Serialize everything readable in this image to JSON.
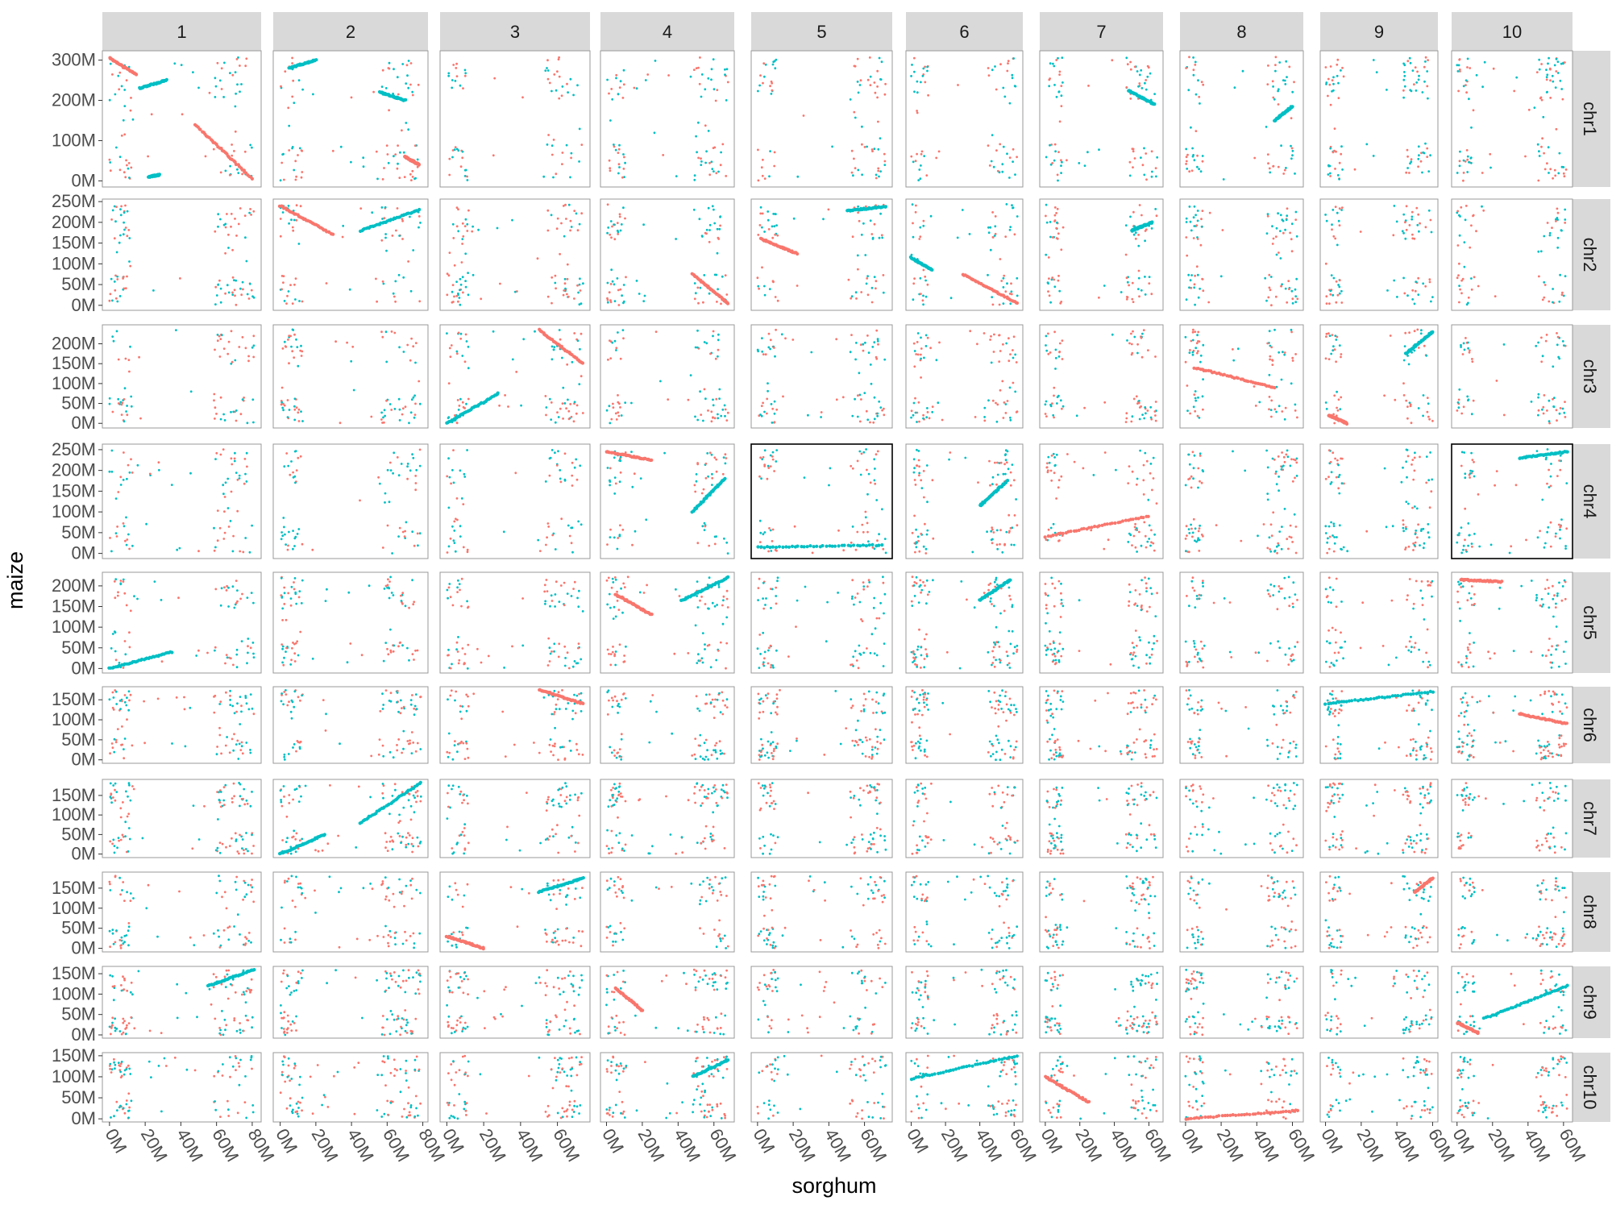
{
  "chart_data": {
    "type": "scatter",
    "layout": "facet-grid",
    "xlabel": "sorghum",
    "ylabel": "maize",
    "column_facets": [
      "1",
      "2",
      "3",
      "4",
      "5",
      "6",
      "7",
      "8",
      "9",
      "10"
    ],
    "row_facets": [
      "chr1",
      "chr2",
      "chr3",
      "chr4",
      "chr5",
      "chr6",
      "chr7",
      "chr8",
      "chr9",
      "chr10"
    ],
    "facet_scales": "free",
    "colors": {
      "series_a": "#F8766D",
      "series_b": "#00BFC4",
      "panel_border": "#999999",
      "highlight_border": "#000000",
      "strip_fill": "#D9D9D9"
    },
    "highlighted_panels": [
      [
        "chr4",
        "5"
      ],
      [
        "chr4",
        "10"
      ]
    ],
    "x_axes": [
      {
        "col": "1",
        "max": 81,
        "ticks": [
          "0M",
          "20M",
          "40M",
          "60M",
          "80M"
        ]
      },
      {
        "col": "2",
        "max": 79,
        "ticks": [
          "0M",
          "20M",
          "40M",
          "60M",
          "80M"
        ]
      },
      {
        "col": "3",
        "max": 74,
        "ticks": [
          "0M",
          "20M",
          "40M",
          "60M"
        ]
      },
      {
        "col": "4",
        "max": 68,
        "ticks": [
          "0M",
          "20M",
          "40M",
          "60M"
        ]
      },
      {
        "col": "5",
        "max": 72,
        "ticks": [
          "0M",
          "20M",
          "40M",
          "60M"
        ]
      },
      {
        "col": "6",
        "max": 62,
        "ticks": [
          "0M",
          "20M",
          "40M",
          "60M"
        ]
      },
      {
        "col": "7",
        "max": 65,
        "ticks": [
          "0M",
          "20M",
          "40M",
          "60M"
        ]
      },
      {
        "col": "8",
        "max": 63,
        "ticks": [
          "0M",
          "20M",
          "40M",
          "60M"
        ]
      },
      {
        "col": "9",
        "max": 60,
        "ticks": [
          "0M",
          "20M",
          "40M",
          "60M"
        ]
      },
      {
        "col": "10",
        "max": 62,
        "ticks": [
          "0M",
          "20M",
          "40M",
          "60M"
        ]
      }
    ],
    "y_axes": [
      {
        "row": "chr1",
        "max": 308,
        "ticks": [
          "0M",
          "100M",
          "200M",
          "300M"
        ]
      },
      {
        "row": "chr2",
        "max": 244,
        "ticks": [
          "0M",
          "50M",
          "100M",
          "150M",
          "200M",
          "250M"
        ]
      },
      {
        "row": "chr3",
        "max": 236,
        "ticks": [
          "0M",
          "50M",
          "100M",
          "150M",
          "200M"
        ]
      },
      {
        "row": "chr4",
        "max": 251,
        "ticks": [
          "0M",
          "50M",
          "100M",
          "150M",
          "200M",
          "250M"
        ]
      },
      {
        "row": "chr5",
        "max": 222,
        "ticks": [
          "0M",
          "50M",
          "100M",
          "150M",
          "200M"
        ]
      },
      {
        "row": "chr6",
        "max": 174,
        "ticks": [
          "0M",
          "50M",
          "100M",
          "150M"
        ]
      },
      {
        "row": "chr7",
        "max": 182,
        "ticks": [
          "0M",
          "50M",
          "100M",
          "150M"
        ]
      },
      {
        "row": "chr8",
        "max": 181,
        "ticks": [
          "0M",
          "50M",
          "100M",
          "150M"
        ]
      },
      {
        "row": "chr9",
        "max": 160,
        "ticks": [
          "0M",
          "50M",
          "100M",
          "150M"
        ]
      },
      {
        "row": "chr10",
        "max": 150,
        "ticks": [
          "0M",
          "50M",
          "100M",
          "150M"
        ]
      }
    ],
    "syntenic_blocks": [
      {
        "row": "chr1",
        "col": "1",
        "series": "series_a",
        "x": [
          0,
          15
        ],
        "y": [
          305,
          265
        ]
      },
      {
        "row": "chr1",
        "col": "1",
        "series": "series_b",
        "x": [
          17,
          32
        ],
        "y": [
          230,
          250
        ]
      },
      {
        "row": "chr1",
        "col": "1",
        "series": "series_b",
        "x": [
          22,
          28
        ],
        "y": [
          10,
          15
        ]
      },
      {
        "row": "chr1",
        "col": "1",
        "series": "series_a",
        "x": [
          48,
          80
        ],
        "y": [
          140,
          5
        ]
      },
      {
        "row": "chr1",
        "col": "2",
        "series": "series_b",
        "x": [
          5,
          20
        ],
        "y": [
          280,
          300
        ]
      },
      {
        "row": "chr1",
        "col": "2",
        "series": "series_b",
        "x": [
          56,
          70
        ],
        "y": [
          220,
          200
        ]
      },
      {
        "row": "chr1",
        "col": "2",
        "series": "series_a",
        "x": [
          70,
          78
        ],
        "y": [
          60,
          40
        ]
      },
      {
        "row": "chr1",
        "col": "7",
        "series": "series_b",
        "x": [
          48,
          63
        ],
        "y": [
          225,
          190
        ]
      },
      {
        "row": "chr1",
        "col": "8",
        "series": "series_b",
        "x": [
          50,
          60
        ],
        "y": [
          150,
          185
        ]
      },
      {
        "row": "chr2",
        "col": "2",
        "series": "series_a",
        "x": [
          0,
          30
        ],
        "y": [
          240,
          170
        ]
      },
      {
        "row": "chr2",
        "col": "2",
        "series": "series_b",
        "x": [
          45,
          78
        ],
        "y": [
          180,
          230
        ]
      },
      {
        "row": "chr2",
        "col": "4",
        "series": "series_a",
        "x": [
          48,
          68
        ],
        "y": [
          75,
          5
        ]
      },
      {
        "row": "chr2",
        "col": "5",
        "series": "series_a",
        "x": [
          2,
          22
        ],
        "y": [
          160,
          125
        ]
      },
      {
        "row": "chr2",
        "col": "5",
        "series": "series_b",
        "x": [
          50,
          72
        ],
        "y": [
          228,
          238
        ]
      },
      {
        "row": "chr2",
        "col": "6",
        "series": "series_a",
        "x": [
          30,
          62
        ],
        "y": [
          75,
          5
        ]
      },
      {
        "row": "chr2",
        "col": "6",
        "series": "series_b",
        "x": [
          0,
          12
        ],
        "y": [
          115,
          85
        ]
      },
      {
        "row": "chr2",
        "col": "7",
        "series": "series_b",
        "x": [
          50,
          62
        ],
        "y": [
          180,
          200
        ]
      },
      {
        "row": "chr3",
        "col": "3",
        "series": "series_b",
        "x": [
          0,
          28
        ],
        "y": [
          0,
          75
        ]
      },
      {
        "row": "chr3",
        "col": "3",
        "series": "series_a",
        "x": [
          50,
          74
        ],
        "y": [
          235,
          150
        ]
      },
      {
        "row": "chr3",
        "col": "8",
        "series": "series_a",
        "x": [
          5,
          50
        ],
        "y": [
          140,
          90
        ]
      },
      {
        "row": "chr3",
        "col": "9",
        "series": "series_b",
        "x": [
          45,
          60
        ],
        "y": [
          175,
          230
        ]
      },
      {
        "row": "chr3",
        "col": "9",
        "series": "series_a",
        "x": [
          2,
          12
        ],
        "y": [
          20,
          0
        ]
      },
      {
        "row": "chr4",
        "col": "4",
        "series": "series_a",
        "x": [
          0,
          25
        ],
        "y": [
          245,
          225
        ]
      },
      {
        "row": "chr4",
        "col": "4",
        "series": "series_b",
        "x": [
          48,
          66
        ],
        "y": [
          100,
          180
        ]
      },
      {
        "row": "chr4",
        "col": "5",
        "series": "series_b",
        "x": [
          0,
          70
        ],
        "y": [
          15,
          20
        ]
      },
      {
        "row": "chr4",
        "col": "6",
        "series": "series_b",
        "x": [
          40,
          56
        ],
        "y": [
          115,
          175
        ]
      },
      {
        "row": "chr4",
        "col": "7",
        "series": "series_a",
        "x": [
          0,
          60
        ],
        "y": [
          40,
          90
        ]
      },
      {
        "row": "chr4",
        "col": "10",
        "series": "series_b",
        "x": [
          35,
          62
        ],
        "y": [
          230,
          245
        ]
      },
      {
        "row": "chr5",
        "col": "1",
        "series": "series_b",
        "x": [
          0,
          35
        ],
        "y": [
          0,
          40
        ]
      },
      {
        "row": "chr5",
        "col": "4",
        "series": "series_a",
        "x": [
          5,
          25
        ],
        "y": [
          180,
          130
        ]
      },
      {
        "row": "chr5",
        "col": "4",
        "series": "series_b",
        "x": [
          42,
          68
        ],
        "y": [
          165,
          220
        ]
      },
      {
        "row": "chr5",
        "col": "6",
        "series": "series_b",
        "x": [
          40,
          58
        ],
        "y": [
          165,
          215
        ]
      },
      {
        "row": "chr5",
        "col": "10",
        "series": "series_a",
        "x": [
          2,
          25
        ],
        "y": [
          215,
          210
        ]
      },
      {
        "row": "chr6",
        "col": "3",
        "series": "series_a",
        "x": [
          50,
          74
        ],
        "y": [
          175,
          140
        ]
      },
      {
        "row": "chr6",
        "col": "9",
        "series": "series_b",
        "x": [
          0,
          60
        ],
        "y": [
          140,
          170
        ]
      },
      {
        "row": "chr6",
        "col": "10",
        "series": "series_a",
        "x": [
          35,
          62
        ],
        "y": [
          115,
          90
        ]
      },
      {
        "row": "chr7",
        "col": "2",
        "series": "series_b",
        "x": [
          0,
          25
        ],
        "y": [
          0,
          50
        ]
      },
      {
        "row": "chr7",
        "col": "2",
        "series": "series_b",
        "x": [
          45,
          79
        ],
        "y": [
          80,
          182
        ]
      },
      {
        "row": "chr8",
        "col": "3",
        "series": "series_a",
        "x": [
          0,
          20
        ],
        "y": [
          30,
          0
        ]
      },
      {
        "row": "chr8",
        "col": "3",
        "series": "series_b",
        "x": [
          50,
          74
        ],
        "y": [
          140,
          175
        ]
      },
      {
        "row": "chr8",
        "col": "9",
        "series": "series_a",
        "x": [
          50,
          60
        ],
        "y": [
          140,
          175
        ]
      },
      {
        "row": "chr9",
        "col": "1",
        "series": "series_b",
        "x": [
          55,
          81
        ],
        "y": [
          120,
          160
        ]
      },
      {
        "row": "chr9",
        "col": "4",
        "series": "series_a",
        "x": [
          5,
          20
        ],
        "y": [
          115,
          60
        ]
      },
      {
        "row": "chr9",
        "col": "10",
        "series": "series_a",
        "x": [
          0,
          12
        ],
        "y": [
          30,
          5
        ]
      },
      {
        "row": "chr9",
        "col": "10",
        "series": "series_b",
        "x": [
          15,
          62
        ],
        "y": [
          40,
          120
        ]
      },
      {
        "row": "chr10",
        "col": "4",
        "series": "series_b",
        "x": [
          48,
          68
        ],
        "y": [
          100,
          140
        ]
      },
      {
        "row": "chr10",
        "col": "6",
        "series": "series_b",
        "x": [
          0,
          62
        ],
        "y": [
          95,
          150
        ]
      },
      {
        "row": "chr10",
        "col": "7",
        "series": "series_a",
        "x": [
          0,
          25
        ],
        "y": [
          100,
          40
        ]
      },
      {
        "row": "chr10",
        "col": "8",
        "series": "series_a",
        "x": [
          0,
          63
        ],
        "y": [
          0,
          20
        ]
      }
    ]
  }
}
